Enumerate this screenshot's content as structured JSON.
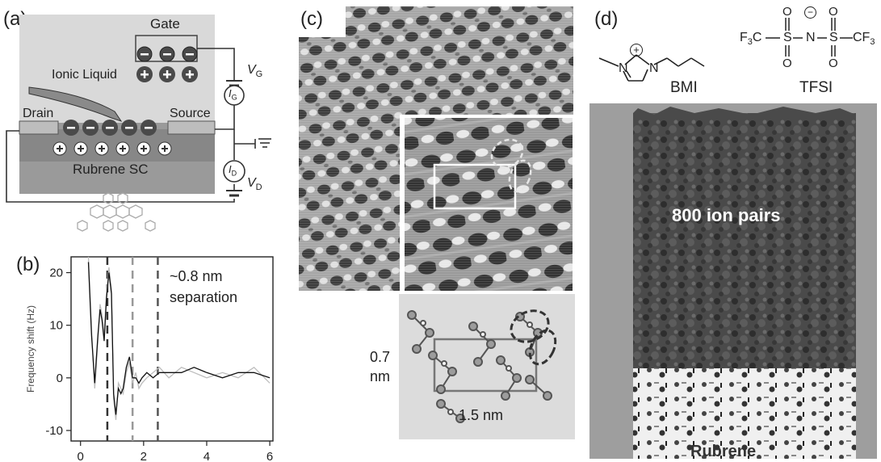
{
  "panels": {
    "a": {
      "label": "(a)",
      "gate": "Gate",
      "ionic_liquid": "Ionic Liquid",
      "drain": "Drain",
      "source": "Source",
      "rubrene_sc": "Rubrene SC",
      "vg": "V",
      "vg_sub": "G",
      "ig": "I",
      "ig_sub": "G",
      "id": "I",
      "id_sub": "D",
      "vd": "V",
      "vd_sub": "D"
    },
    "b": {
      "label": "(b)",
      "annotation_line1": "~0.8 nm",
      "annotation_line2": "separation"
    },
    "c": {
      "label": "(c)",
      "dim_vertical_1": "0.7",
      "dim_vertical_2": "nm",
      "dim_horizontal": "1.5 nm"
    },
    "d": {
      "label": "(d)",
      "bmi_label": "BMI",
      "tfsi_label": "TFSI",
      "cf3_left": "F",
      "cf3_left_sub": "3",
      "cf3_left_c": "C",
      "cf3_right": "CF",
      "cf3_right_sub": "3",
      "s_left": "S",
      "s_right": "S",
      "n_tfsi": "N",
      "n_plus": "N",
      "n_ring": "N",
      "o": "O",
      "plus_sign": "+",
      "minus_sign": "−",
      "ion_pairs": "800 ion pairs",
      "rubrene": "Rubrene"
    }
  },
  "chart_data": {
    "type": "line",
    "title": "",
    "xlabel": "",
    "ylabel": "Frequency shift (Hz)",
    "xlim": [
      -0.3,
      6.1
    ],
    "ylim": [
      -12,
      23
    ],
    "xticks": [
      0,
      2,
      4,
      6
    ],
    "yticks": [
      -10,
      0,
      10,
      20
    ],
    "xtick_labels": [
      "0",
      "2",
      "4",
      "6"
    ],
    "ytick_labels": [
      "-10",
      "0",
      "10",
      "20"
    ],
    "reference_lines_x": [
      0.85,
      1.65,
      2.45
    ],
    "series": [
      {
        "x": [
          0.25,
          0.35,
          0.45,
          0.55,
          0.62,
          0.68,
          0.75,
          0.82,
          0.9,
          0.98,
          1.05,
          1.12,
          1.2,
          1.28,
          1.35,
          1.45,
          1.55,
          1.65,
          1.75,
          1.85,
          1.95,
          2.1,
          2.3,
          2.5,
          2.8,
          3.2,
          3.6,
          4.0,
          4.5,
          5.0,
          5.5,
          6.0
        ],
        "y": [
          23,
          9,
          -2,
          7,
          14,
          12,
          8,
          16,
          21,
          17,
          -4,
          -8,
          -1,
          -2,
          -3,
          1,
          3,
          -1,
          1,
          -2,
          -1,
          0,
          1,
          2,
          0,
          2,
          1,
          0,
          1,
          0,
          2,
          -1
        ]
      },
      {
        "x": [
          0.25,
          0.35,
          0.45,
          0.55,
          0.62,
          0.68,
          0.75,
          0.82,
          0.9,
          0.98,
          1.05,
          1.12,
          1.2,
          1.28,
          1.35,
          1.45,
          1.55,
          1.65,
          1.75,
          1.85,
          1.95,
          2.1,
          2.3,
          2.5,
          2.8,
          3.2,
          3.6,
          4.0,
          4.5,
          5.0,
          5.5,
          6.0
        ],
        "y": [
          22,
          8,
          -1,
          8,
          13,
          11,
          7,
          15,
          20,
          16,
          -3,
          -7,
          -2,
          -3,
          -2,
          2,
          4,
          0,
          0,
          -1,
          0,
          1,
          0,
          1,
          1,
          1,
          2,
          1,
          0,
          1,
          1,
          0
        ]
      }
    ]
  }
}
